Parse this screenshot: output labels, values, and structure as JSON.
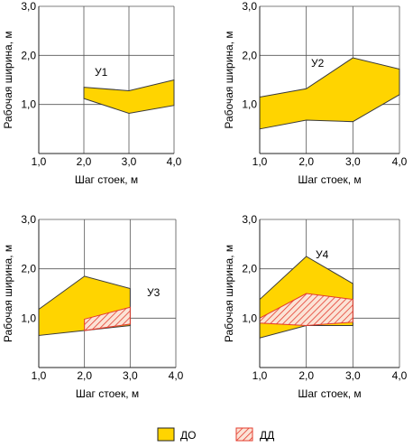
{
  "legend": {
    "items": [
      {
        "label": "ДО",
        "fill": "#FFD400",
        "pattern": "solid"
      },
      {
        "label": "ДД",
        "fill": "#E43C2E",
        "pattern": "hatched"
      }
    ]
  },
  "chart_data": [
    {
      "type": "area",
      "annotation": "У1",
      "xlabel": "Шаг стоек, м",
      "ylabel": "Рабочая ширина, м",
      "xlim": [
        1,
        4
      ],
      "ylim": [
        0,
        3
      ],
      "xticks": [
        "1,0",
        "2,0",
        "3,0",
        "4,0"
      ],
      "yticks": [
        "1,0",
        "2,0",
        "3,0"
      ],
      "grid": true,
      "series": [
        {
          "region": "ДО",
          "x": [
            2,
            3,
            4
          ],
          "upper": [
            1.35,
            1.28,
            1.5
          ],
          "lower": [
            1.12,
            0.82,
            0.98
          ]
        }
      ]
    },
    {
      "type": "area",
      "annotation": "У2",
      "xlabel": "Шаг стоек, м",
      "ylabel": "Рабочая ширина, м",
      "xlim": [
        1,
        4
      ],
      "ylim": [
        0,
        3
      ],
      "xticks": [
        "1,0",
        "2,0",
        "3,0",
        "4,0"
      ],
      "yticks": [
        "1,0",
        "2,0",
        "3,0"
      ],
      "grid": true,
      "series": [
        {
          "region": "ДО",
          "x": [
            1,
            2,
            3,
            4
          ],
          "upper": [
            1.15,
            1.32,
            1.95,
            1.72
          ],
          "lower": [
            0.5,
            0.68,
            0.65,
            1.2
          ]
        }
      ]
    },
    {
      "type": "area",
      "annotation": "У3",
      "xlabel": "Шаг стоек, м",
      "ylabel": "Рабочая ширина, м",
      "xlim": [
        1,
        4
      ],
      "ylim": [
        0,
        3
      ],
      "xticks": [
        "1,0",
        "2,0",
        "3,0",
        "4,0"
      ],
      "yticks": [
        "1,0",
        "2,0",
        "3,0"
      ],
      "grid": true,
      "series": [
        {
          "region": "ДО",
          "x": [
            1,
            2,
            3
          ],
          "upper": [
            1.18,
            1.85,
            1.6
          ],
          "lower": [
            0.65,
            0.75,
            0.85
          ]
        },
        {
          "region": "ДД",
          "x": [
            2,
            3
          ],
          "upper": [
            0.98,
            1.22
          ],
          "lower": [
            0.75,
            0.88
          ]
        }
      ]
    },
    {
      "type": "area",
      "annotation": "У4",
      "xlabel": "Шаг стоек, м",
      "ylabel": "Рабочая ширина, м",
      "xlim": [
        1,
        4
      ],
      "ylim": [
        0,
        3
      ],
      "xticks": [
        "1,0",
        "2,0",
        "3,0",
        "4,0"
      ],
      "yticks": [
        "1,0",
        "2,0",
        "3,0"
      ],
      "grid": true,
      "series": [
        {
          "region": "ДО",
          "x": [
            1,
            2,
            3
          ],
          "upper": [
            1.38,
            2.25,
            1.7
          ],
          "lower": [
            0.6,
            0.85,
            0.85
          ]
        },
        {
          "region": "ДД",
          "x": [
            1,
            2,
            3
          ],
          "upper": [
            1.0,
            1.5,
            1.38
          ],
          "lower": [
            0.9,
            0.85,
            0.92
          ]
        }
      ]
    }
  ]
}
